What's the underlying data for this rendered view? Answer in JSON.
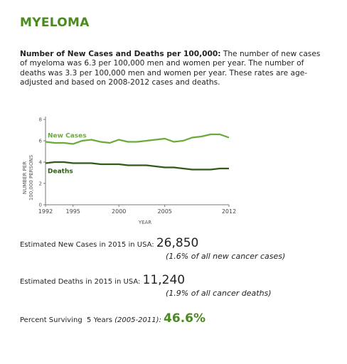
{
  "page": {
    "title": "MYELOMA",
    "description_lead": "Number of New Cases and Deaths per 100,000:",
    "description_body": " The number of new cases of myeloma was 6.3 per 100,000 men and women per year. The number of deaths was 3.3 per 100,000 men and women per year. These rates are age-adjusted and based on 2008-2012 cases and deaths."
  },
  "colors": {
    "new_cases": "#6aaa3a",
    "deaths": "#2f5a17",
    "title": "#4a8a1e",
    "axis": "#777777"
  },
  "chart_data": {
    "type": "line",
    "xlabel": "YEAR",
    "ylabel_line1": "NUMBER PER",
    "ylabel_line2": "100,000 PERSONS",
    "xlim": [
      1992,
      2012
    ],
    "ylim": [
      0,
      8
    ],
    "x_ticks": [
      1992,
      1995,
      2000,
      2005,
      2012
    ],
    "y_ticks": [
      0,
      2,
      4,
      6,
      8
    ],
    "x": [
      1992,
      1993,
      1994,
      1995,
      1996,
      1997,
      1998,
      1999,
      2000,
      2001,
      2002,
      2003,
      2004,
      2005,
      2006,
      2007,
      2008,
      2009,
      2010,
      2011,
      2012
    ],
    "series": [
      {
        "name": "New Cases",
        "values": [
          5.9,
          5.8,
          5.8,
          5.7,
          6.0,
          6.1,
          5.9,
          5.8,
          6.1,
          5.9,
          5.9,
          6.0,
          6.1,
          6.2,
          5.9,
          6.0,
          6.3,
          6.4,
          6.6,
          6.6,
          6.3
        ]
      },
      {
        "name": "Deaths",
        "values": [
          3.9,
          4.0,
          4.0,
          3.9,
          3.9,
          3.9,
          3.8,
          3.8,
          3.8,
          3.7,
          3.7,
          3.7,
          3.6,
          3.5,
          3.5,
          3.4,
          3.3,
          3.3,
          3.3,
          3.4,
          3.4
        ]
      }
    ]
  },
  "stats": {
    "new_cases_label": "Estimated New Cases in 2015 in USA:",
    "new_cases_value": "26,850",
    "new_cases_note": "(1.6% of all new cancer cases)",
    "deaths_label": "Estimated Deaths in 2015 in USA:",
    "deaths_value": "11,240",
    "deaths_note": "(1.9% of all cancer deaths)",
    "survival_label": "Percent Surviving  5 Years",
    "survival_period": "(2005-2011):",
    "survival_value": "46.6%"
  }
}
